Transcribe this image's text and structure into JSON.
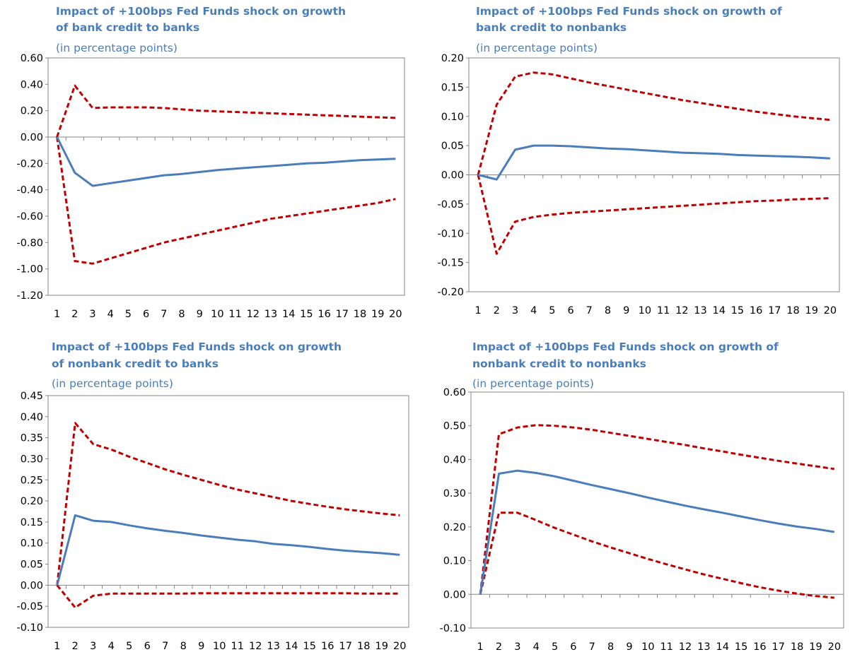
{
  "colors": {
    "title": "#4a7ebb",
    "estimate": "#4a7ebb",
    "bands": "#c00000",
    "axis": "#868686"
  },
  "chart_data": [
    {
      "type": "line",
      "title_line1": "Impact of +100bps Fed Funds shock on growth",
      "title_line2": "of bank credit to banks",
      "subtitle": "(in percentage points)",
      "x": [
        1,
        2,
        3,
        4,
        5,
        6,
        7,
        8,
        9,
        10,
        11,
        12,
        13,
        14,
        15,
        16,
        17,
        18,
        19,
        20
      ],
      "ylim": [
        -1.2,
        0.6
      ],
      "yticks": [
        -1.2,
        -1.0,
        -0.8,
        -0.6,
        -0.4,
        -0.2,
        0.0,
        0.2,
        0.4,
        0.6
      ],
      "ytick_labels": [
        "-1.20",
        "-1.00",
        "-0.80",
        "-0.60",
        "-0.40",
        "-0.20",
        "0.00",
        "0.20",
        "0.40",
        "0.60"
      ],
      "series": [
        {
          "style": "solid",
          "values": [
            0.0,
            -0.27,
            -0.37,
            -0.35,
            -0.33,
            -0.31,
            -0.29,
            -0.28,
            -0.265,
            -0.25,
            -0.24,
            -0.23,
            -0.22,
            -0.21,
            -0.2,
            -0.195,
            -0.185,
            -0.175,
            -0.17,
            -0.165
          ]
        },
        {
          "style": "dashed",
          "values": [
            0.0,
            0.39,
            0.22,
            0.225,
            0.225,
            0.225,
            0.22,
            0.21,
            0.2,
            0.195,
            0.19,
            0.185,
            0.18,
            0.175,
            0.17,
            0.165,
            0.16,
            0.155,
            0.15,
            0.145
          ]
        },
        {
          "style": "dashed",
          "values": [
            0.0,
            -0.94,
            -0.96,
            -0.92,
            -0.88,
            -0.84,
            -0.8,
            -0.77,
            -0.74,
            -0.71,
            -0.68,
            -0.65,
            -0.62,
            -0.6,
            -0.58,
            -0.56,
            -0.54,
            -0.52,
            -0.5,
            -0.47
          ]
        }
      ]
    },
    {
      "type": "line",
      "title_line1": "Impact of +100bps Fed Funds shock on growth of",
      "title_line2": "bank credit to nonbanks",
      "subtitle": "(in percentage points)",
      "x": [
        1,
        2,
        3,
        4,
        5,
        6,
        7,
        8,
        9,
        10,
        11,
        12,
        13,
        14,
        15,
        16,
        17,
        18,
        19,
        20
      ],
      "ylim": [
        -0.2,
        0.2
      ],
      "yticks": [
        -0.2,
        -0.15,
        -0.1,
        -0.05,
        0.0,
        0.05,
        0.1,
        0.15,
        0.2
      ],
      "ytick_labels": [
        "-0.20",
        "-0.15",
        "-0.10",
        "-0.05",
        "0.00",
        "0.05",
        "0.10",
        "0.15",
        "0.20"
      ],
      "series": [
        {
          "style": "solid",
          "values": [
            0.0,
            -0.008,
            0.043,
            0.05,
            0.05,
            0.049,
            0.047,
            0.045,
            0.044,
            0.042,
            0.04,
            0.038,
            0.037,
            0.036,
            0.034,
            0.033,
            0.032,
            0.031,
            0.03,
            0.028
          ]
        },
        {
          "style": "dashed",
          "values": [
            0.0,
            0.12,
            0.168,
            0.175,
            0.172,
            0.165,
            0.158,
            0.152,
            0.146,
            0.14,
            0.134,
            0.128,
            0.123,
            0.118,
            0.113,
            0.108,
            0.104,
            0.1,
            0.097,
            0.094
          ]
        },
        {
          "style": "dashed",
          "values": [
            0.0,
            -0.135,
            -0.08,
            -0.072,
            -0.068,
            -0.065,
            -0.063,
            -0.061,
            -0.059,
            -0.057,
            -0.055,
            -0.053,
            -0.051,
            -0.049,
            -0.047,
            -0.045,
            -0.044,
            -0.042,
            -0.041,
            -0.04
          ]
        }
      ]
    },
    {
      "type": "line",
      "title_line1": "Impact of +100bps Fed Funds shock on growth",
      "title_line2": "of nonbank credit to banks",
      "subtitle": "(in percentage points)",
      "x": [
        1,
        2,
        3,
        4,
        5,
        6,
        7,
        8,
        9,
        10,
        11,
        12,
        13,
        14,
        15,
        16,
        17,
        18,
        19,
        20
      ],
      "ylim": [
        -0.1,
        0.45
      ],
      "yticks": [
        -0.1,
        -0.05,
        0.0,
        0.05,
        0.1,
        0.15,
        0.2,
        0.25,
        0.3,
        0.35,
        0.4,
        0.45
      ],
      "ytick_labels": [
        "-0.10",
        "-0.05",
        "0.00",
        "0.05",
        "0.10",
        "0.15",
        "0.20",
        "0.25",
        "0.30",
        "0.35",
        "0.40",
        "0.45"
      ],
      "series": [
        {
          "style": "solid",
          "values": [
            0.0,
            0.166,
            0.153,
            0.15,
            0.142,
            0.135,
            0.129,
            0.124,
            0.118,
            0.113,
            0.108,
            0.104,
            0.098,
            0.095,
            0.091,
            0.086,
            0.082,
            0.079,
            0.076,
            0.072
          ]
        },
        {
          "style": "dashed",
          "values": [
            0.0,
            0.385,
            0.335,
            0.322,
            0.305,
            0.29,
            0.275,
            0.262,
            0.25,
            0.238,
            0.227,
            0.218,
            0.209,
            0.2,
            0.193,
            0.186,
            0.18,
            0.175,
            0.17,
            0.166
          ]
        },
        {
          "style": "dashed",
          "values": [
            0.0,
            -0.053,
            -0.025,
            -0.02,
            -0.02,
            -0.02,
            -0.02,
            -0.02,
            -0.019,
            -0.019,
            -0.019,
            -0.019,
            -0.019,
            -0.019,
            -0.019,
            -0.019,
            -0.019,
            -0.02,
            -0.02,
            -0.02
          ]
        }
      ]
    },
    {
      "type": "line",
      "title_line1": "Impact of +100bps Fed Funds shock on growth of",
      "title_line2": "nonbank credit to nonbanks",
      "subtitle": "(in percentage points)",
      "x": [
        1,
        2,
        3,
        4,
        5,
        6,
        7,
        8,
        9,
        10,
        11,
        12,
        13,
        14,
        15,
        16,
        17,
        18,
        19,
        20
      ],
      "ylim": [
        -0.1,
        0.6
      ],
      "yticks": [
        -0.1,
        0.0,
        0.1,
        0.2,
        0.3,
        0.4,
        0.5,
        0.6
      ],
      "ytick_labels": [
        "-0.10",
        "0.00",
        "0.10",
        "0.20",
        "0.30",
        "0.40",
        "0.50",
        "0.60"
      ],
      "series": [
        {
          "style": "solid",
          "values": [
            0.0,
            0.358,
            0.367,
            0.36,
            0.35,
            0.337,
            0.324,
            0.312,
            0.3,
            0.287,
            0.275,
            0.263,
            0.252,
            0.242,
            0.231,
            0.22,
            0.21,
            0.201,
            0.194,
            0.185
          ]
        },
        {
          "style": "dashed",
          "values": [
            0.0,
            0.475,
            0.495,
            0.502,
            0.5,
            0.495,
            0.488,
            0.479,
            0.47,
            0.461,
            0.452,
            0.443,
            0.433,
            0.424,
            0.414,
            0.405,
            0.396,
            0.388,
            0.38,
            0.372
          ]
        },
        {
          "style": "dashed",
          "values": [
            0.0,
            0.242,
            0.242,
            0.22,
            0.197,
            0.177,
            0.157,
            0.139,
            0.122,
            0.105,
            0.089,
            0.074,
            0.059,
            0.046,
            0.033,
            0.021,
            0.011,
            0.002,
            -0.005,
            -0.01
          ]
        }
      ]
    }
  ]
}
